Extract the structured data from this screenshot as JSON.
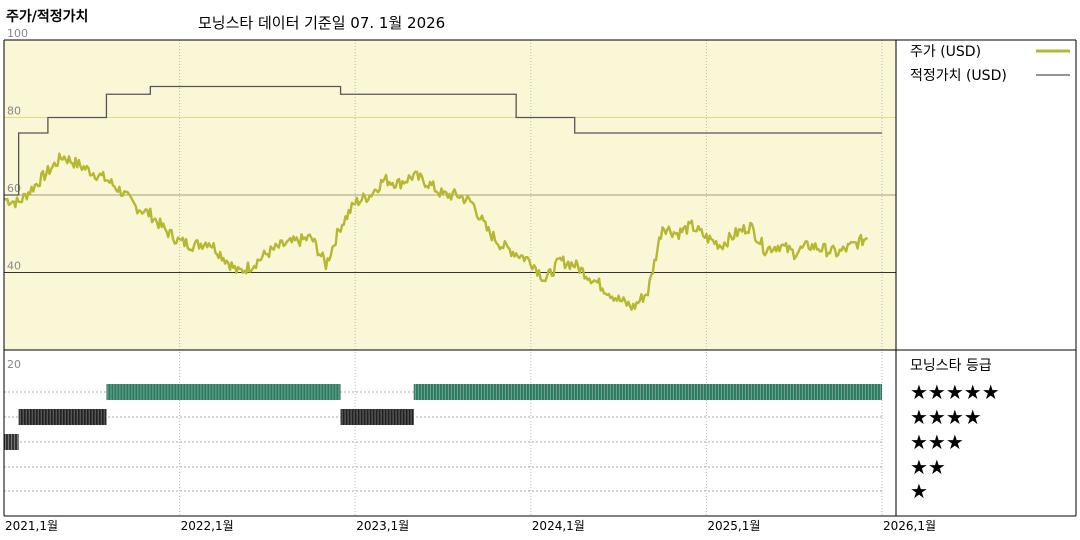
{
  "header": {
    "chart_title": "주가/적정가치",
    "data_date": "모닝스타 데이터 기준일 07. 1월 2026"
  },
  "legend": {
    "price_label": "주가 (USD)",
    "fair_value_label": "적정가치 (USD)",
    "rating_title": "모닝스타 등급"
  },
  "colors": {
    "price_line": "#b5b830",
    "fair_value_line": "#555555",
    "plot_bg": "#faf7d7",
    "grid": "#e2d98e",
    "rating_5": "#2d7a60",
    "rating_4": "#222222",
    "rating_3": "#333333"
  },
  "chart_data": [
    {
      "type": "line",
      "y_ticks": [
        "100",
        "80",
        "60",
        "40"
      ],
      "ylim": [
        20,
        100
      ],
      "x_ticks": [
        "2021,1월",
        "2022,1월",
        "2023,1월",
        "2024,1월",
        "2025,1월",
        "2026,1월"
      ],
      "xlim": [
        "2021-01",
        "2026-01"
      ],
      "series": [
        {
          "name": "주가 (USD)",
          "x": [
            "2021-01",
            "2021-02",
            "2021-03",
            "2021-04",
            "2021-05",
            "2021-06",
            "2021-07",
            "2021-08",
            "2021-09",
            "2021-10",
            "2021-11",
            "2021-12",
            "2022-01",
            "2022-02",
            "2022-03",
            "2022-04",
            "2022-05",
            "2022-06",
            "2022-07",
            "2022-08",
            "2022-09",
            "2022-10",
            "2022-11",
            "2022-12",
            "2023-01",
            "2023-02",
            "2023-03",
            "2023-04",
            "2023-05",
            "2023-06",
            "2023-07",
            "2023-08",
            "2023-09",
            "2023-10",
            "2023-11",
            "2023-12",
            "2024-01",
            "2024-02",
            "2024-03",
            "2024-04",
            "2024-05",
            "2024-06",
            "2024-07",
            "2024-08",
            "2024-09",
            "2024-10",
            "2024-11",
            "2024-12",
            "2025-01",
            "2025-02",
            "2025-03",
            "2025-04",
            "2025-05",
            "2025-06",
            "2025-07",
            "2025-08",
            "2025-09",
            "2025-10",
            "2025-11",
            "2025-12"
          ],
          "values": [
            59,
            58,
            62,
            66,
            70,
            68,
            66,
            64,
            61,
            57,
            55,
            51,
            48,
            47,
            48,
            44,
            40,
            42,
            45,
            47,
            48,
            49,
            42,
            52,
            58,
            60,
            64,
            63,
            65,
            63,
            60,
            60,
            58,
            51,
            47,
            45,
            43,
            38,
            43,
            42,
            39,
            36,
            33,
            31,
            35,
            52,
            50,
            52,
            49,
            47,
            50,
            52,
            46,
            47,
            45,
            47,
            46,
            45,
            47,
            49
          ]
        },
        {
          "name": "적정가치 (USD)",
          "x": [
            "2021-01",
            "2021-02",
            "2021-04",
            "2021-08",
            "2021-11",
            "2022-01",
            "2022-07",
            "2022-12",
            "2023-06",
            "2023-12",
            "2024-04",
            "2026-01"
          ],
          "values": [
            60,
            76,
            80,
            86,
            88,
            88,
            88,
            86,
            86,
            80,
            76,
            76
          ]
        }
      ]
    },
    {
      "type": "bar",
      "title": "모닝스타 등급",
      "categories": [
        "★★★★★",
        "★★★★",
        "★★★",
        "★★",
        "★"
      ],
      "periods": [
        {
          "start": "2021-01",
          "end": "2021-02",
          "rating": 3
        },
        {
          "start": "2021-02",
          "end": "2021-08",
          "rating": 4
        },
        {
          "start": "2021-08",
          "end": "2022-12",
          "rating": 5
        },
        {
          "start": "2022-12",
          "end": "2023-05",
          "rating": 4
        },
        {
          "start": "2023-05",
          "end": "2026-01",
          "rating": 5
        }
      ]
    }
  ]
}
